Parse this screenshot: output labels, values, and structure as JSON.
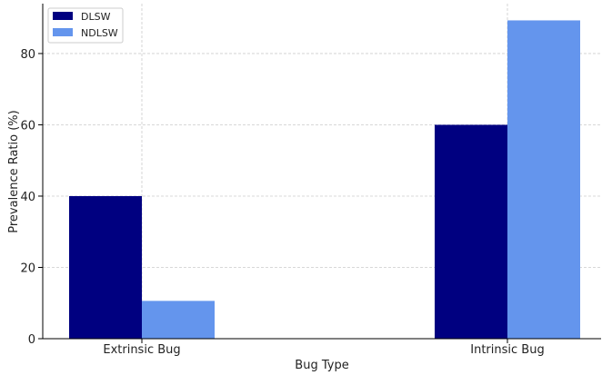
{
  "chart_data": {
    "type": "bar",
    "title": "",
    "xlabel": "Bug Type",
    "ylabel": "Prevalence Ratio (%)",
    "categories": [
      "Extrinsic Bug",
      "Intrinsic Bug"
    ],
    "series": [
      {
        "name": "DLSW",
        "values": [
          40,
          60
        ],
        "color": "#000080"
      },
      {
        "name": "NDLSW",
        "values": [
          10.6,
          89.3
        ],
        "color": "#6495ED"
      }
    ],
    "ylim": [
      0,
      94
    ],
    "yticks": [
      0,
      20,
      40,
      60,
      80
    ],
    "grid": true,
    "legend": "top-left"
  }
}
